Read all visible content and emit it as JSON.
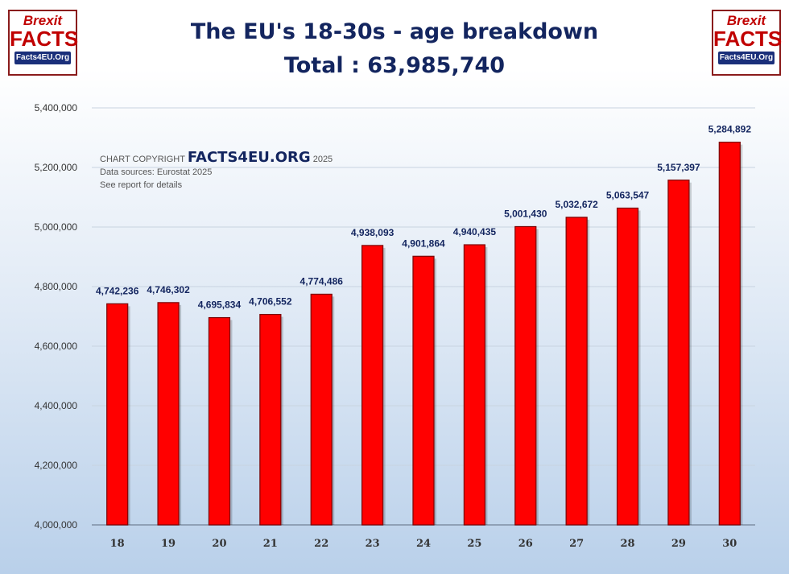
{
  "logo": {
    "line1": "Brexit",
    "line2": "FACTS",
    "line3": "Facts4EU.Org"
  },
  "header": {
    "title": "The EU's 18-30s - age breakdown",
    "subtitle": "Total : 63,985,740"
  },
  "copyright": {
    "prefix": "CHART COPYRIGHT",
    "brand": "FACTS4EU.ORG",
    "year": "2025",
    "source": "Data sources: Eurostat 2025",
    "note": "See report for details"
  },
  "colors": {
    "bar": "#ff0000",
    "bar_border": "#7a0000",
    "title": "#13255f",
    "grid": "#c8d3e0"
  },
  "chart_data": {
    "type": "bar",
    "title": "The EU's 18-30s - age breakdown",
    "subtitle": "Total : 63,985,740",
    "categories": [
      "18",
      "19",
      "20",
      "21",
      "22",
      "23",
      "24",
      "25",
      "26",
      "27",
      "28",
      "29",
      "30"
    ],
    "values": [
      4742236,
      4746302,
      4695834,
      4706552,
      4774486,
      4938093,
      4901864,
      4940435,
      5001430,
      5032672,
      5063547,
      5157397,
      5284892
    ],
    "data_labels": [
      "4,742,236",
      "4,746,302",
      "4,695,834",
      "4,706,552",
      "4,774,486",
      "4,938,093",
      "4,901,864",
      "4,940,435",
      "5,001,430",
      "5,032,672",
      "5,063,547",
      "5,157,397",
      "5,284,892"
    ],
    "yticks": [
      4000000,
      4200000,
      4400000,
      4600000,
      4800000,
      5000000,
      5200000,
      5400000
    ],
    "ytick_labels": [
      "4,000,000",
      "4,200,000",
      "4,400,000",
      "4,600,000",
      "4,800,000",
      "5,000,000",
      "5,200,000",
      "5,400,000"
    ],
    "ylim": [
      4000000,
      5400000
    ],
    "grid": true,
    "legend": "none"
  }
}
